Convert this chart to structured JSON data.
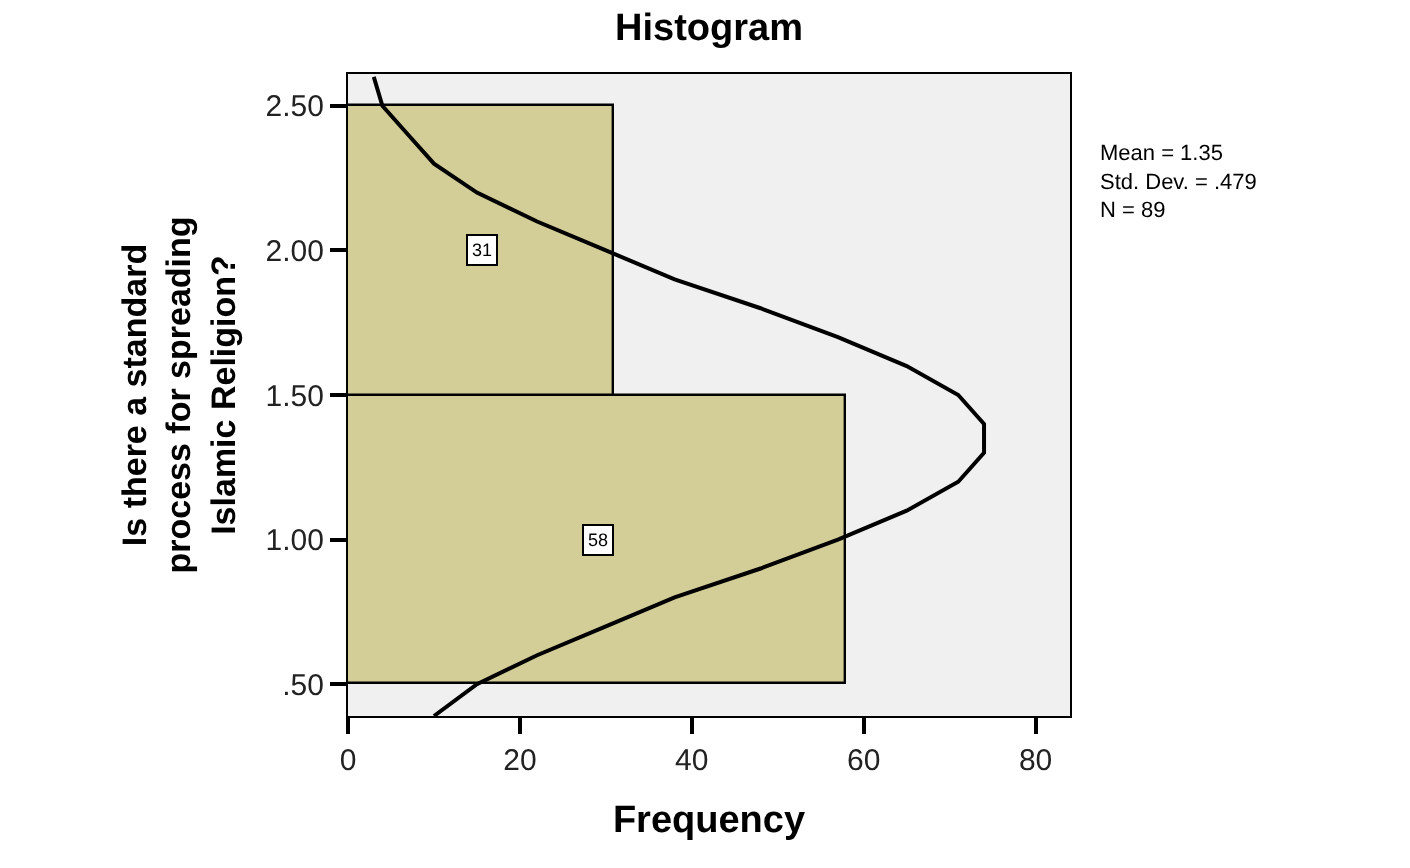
{
  "chart_data": {
    "type": "histogram",
    "orientation": "horizontal",
    "title": "Histogram",
    "xlabel": "Frequency",
    "ylabel": "Is there a standard process for spreading Islamic Religion?",
    "bins": [
      0.5,
      1.5,
      2.5
    ],
    "series": [
      {
        "color": "#d3ce97",
        "values": [
          58,
          31
        ],
        "value_labels": [
          "58",
          "31"
        ]
      },
      {
        "type": "line",
        "color": "#000000",
        "x": [
          0.39,
          0.5,
          0.6,
          0.7,
          0.8,
          0.9,
          1.0,
          1.1,
          1.2,
          1.3,
          1.35,
          1.4,
          1.5,
          1.6,
          1.7,
          1.8,
          1.9,
          2.0,
          2.1,
          2.2,
          2.3,
          2.4,
          2.5,
          2.6
        ],
        "values": [
          10,
          15,
          22,
          30,
          38,
          48,
          57,
          65,
          71,
          74,
          74,
          74,
          71,
          65,
          57,
          48,
          38,
          30,
          22,
          15,
          10,
          7,
          4,
          3
        ]
      }
    ],
    "xlim": [
      0,
      84
    ],
    "xticks": [
      0,
      20,
      40,
      60,
      80
    ],
    "ylim": [
      0.39,
      2.61
    ],
    "yticks": [
      {
        "value": 0.5,
        "label": ".50"
      },
      {
        "value": 1.0,
        "label": "1.00"
      },
      {
        "value": 1.5,
        "label": "1.50"
      },
      {
        "value": 2.0,
        "label": "2.00"
      },
      {
        "value": 2.5,
        "label": "2.50"
      }
    ],
    "annotations": [
      "Mean = 1.35",
      "Std. Dev. = .479",
      "N = 89"
    ],
    "grid": false
  }
}
